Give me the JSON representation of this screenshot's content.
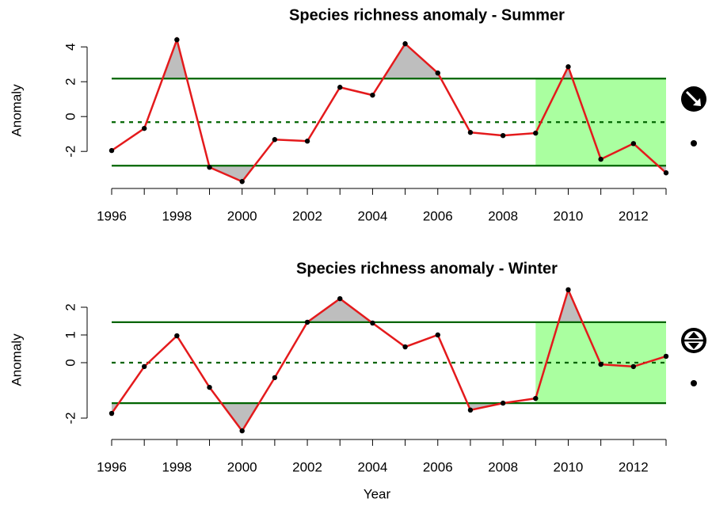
{
  "chart_data": [
    {
      "type": "line",
      "title": "Species richness anomaly - Summer",
      "y_label": "Anomaly",
      "x": [
        1996,
        1997,
        1998,
        1999,
        2000,
        2001,
        2002,
        2003,
        2004,
        2005,
        2006,
        2007,
        2008,
        2009,
        2010,
        2011,
        2012,
        2013
      ],
      "series": [
        {
          "color": "#e41a1c",
          "values": [
            -1.95,
            -0.68,
            4.41,
            -2.91,
            -3.73,
            -1.32,
            -1.41,
            1.68,
            1.23,
            4.18,
            2.5,
            -0.91,
            -1.09,
            -0.95,
            2.86,
            -2.45,
            -1.55,
            -3.23
          ]
        }
      ],
      "thresholds": {
        "upper": 2.18,
        "mean": -0.32,
        "lower": -2.82
      },
      "threshold_color": "#006400",
      "highlight_x": [
        2009,
        2013
      ],
      "highlight_color": "#aaffa0",
      "exceedance_color": "#bebebe",
      "xlim": [
        1996,
        2013
      ],
      "xticks": [
        1996,
        1998,
        2000,
        2002,
        2004,
        2006,
        2008,
        2010,
        2012
      ],
      "ylim": [
        -3.9,
        4.6
      ],
      "yticks": [
        -2,
        0,
        2,
        4
      ]
    },
    {
      "type": "line",
      "title": "Species richness anomaly - Winter",
      "y_label": "Anomaly",
      "x_label": "Year",
      "x": [
        1996,
        1997,
        1998,
        1999,
        2000,
        2001,
        2002,
        2003,
        2004,
        2005,
        2006,
        2007,
        2008,
        2009,
        2010,
        2011,
        2012,
        2013
      ],
      "series": [
        {
          "color": "#e41a1c",
          "values": [
            -1.83,
            -0.14,
            0.97,
            -0.89,
            -2.46,
            -0.54,
            1.46,
            2.31,
            1.43,
            0.57,
            1.0,
            -1.71,
            -1.46,
            -1.29,
            2.63,
            -0.06,
            -0.14,
            0.23
          ]
        }
      ],
      "thresholds": {
        "upper": 1.46,
        "mean": 0,
        "lower": -1.46
      },
      "threshold_color": "#006400",
      "highlight_x": [
        2009,
        2013
      ],
      "highlight_color": "#aaffa0",
      "exceedance_color": "#bebebe",
      "xlim": [
        1996,
        2013
      ],
      "xticks": [
        1996,
        1998,
        2000,
        2002,
        2004,
        2006,
        2008,
        2010,
        2012
      ],
      "ylim": [
        -2.6,
        2.8
      ],
      "yticks": [
        -2,
        0,
        1,
        2
      ]
    }
  ]
}
